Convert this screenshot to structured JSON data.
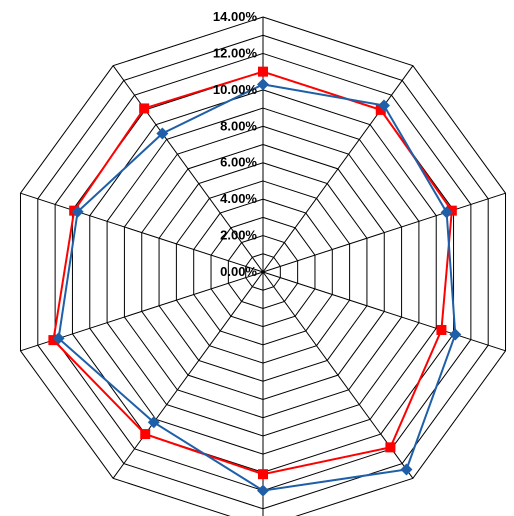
{
  "chart_data": {
    "type": "radar",
    "title": "",
    "axes_count": 10,
    "r_ticks": [
      "0.00%",
      "2.00%",
      "4.00%",
      "6.00%",
      "8.00%",
      "10.00%",
      "12.00%",
      "14.00%"
    ],
    "r_range": [
      0,
      14
    ],
    "grid": true,
    "series": [
      {
        "color": "#FF0000",
        "marker": "square",
        "values": [
          11.0,
          11.0,
          10.9,
          10.3,
          11.9,
          11.1,
          11.0,
          12.1,
          10.9,
          11.1
        ]
      },
      {
        "color": "#1F5FA8",
        "marker": "diamond",
        "values": [
          10.3,
          11.3,
          10.6,
          11.1,
          13.4,
          12.0,
          10.2,
          11.8,
          10.7,
          9.4
        ]
      }
    ]
  }
}
